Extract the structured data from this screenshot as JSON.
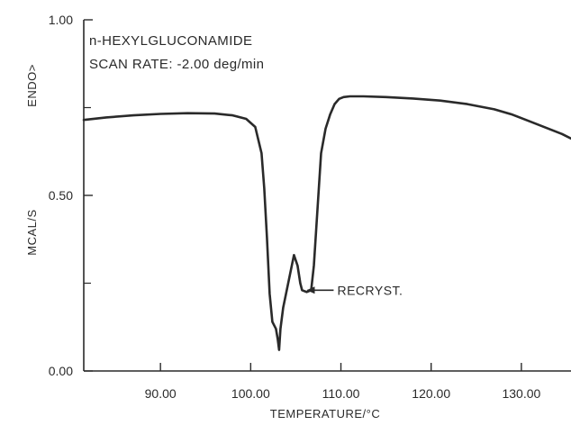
{
  "chart_data": {
    "type": "line",
    "info_lines": [
      "n-HEXYLGLUCONAMIDE",
      "SCAN RATE: -2.00 deg/min"
    ],
    "xlabel": "TEMPERATURE/°C",
    "ylabel_units": "MCAL/S",
    "ylabel_direction": "ENDO>",
    "xlim": [
      81.5,
      135.5
    ],
    "ylim": [
      0.0,
      1.0
    ],
    "x_ticks": [
      {
        "value": 90,
        "label": "90.00"
      },
      {
        "value": 100,
        "label": "100.00"
      },
      {
        "value": 110,
        "label": "110.00"
      },
      {
        "value": 120,
        "label": "120.00"
      },
      {
        "value": 130,
        "label": "130.00"
      }
    ],
    "y_ticks": [
      {
        "value": 0.0,
        "label": "0.00"
      },
      {
        "value": 0.5,
        "label": "0.50"
      },
      {
        "value": 1.0,
        "label": "1.00"
      }
    ],
    "y_minor_ticks": [
      0.25,
      0.75
    ],
    "grid": false,
    "annotation": {
      "text": "RECRYST.",
      "x": 106.0,
      "y": 0.23
    },
    "series": [
      {
        "x": [
          81.5,
          84,
          87,
          90,
          93,
          96,
          98,
          99.5,
          100.5,
          101.2,
          101.5,
          101.8,
          102.1,
          102.4,
          102.6,
          102.8,
          103.0,
          103.15,
          103.3,
          103.6,
          104.0,
          104.4,
          104.8,
          105.2,
          105.5,
          105.7,
          106.2,
          106.7,
          107.0,
          107.4,
          107.8,
          108.3,
          108.8,
          109.3,
          109.8,
          110.3,
          111,
          112.5,
          115,
          118,
          121,
          124,
          127,
          129,
          131,
          133,
          134.5,
          135.5
        ],
        "y": [
          0.715,
          0.722,
          0.728,
          0.732,
          0.734,
          0.733,
          0.728,
          0.718,
          0.695,
          0.62,
          0.52,
          0.38,
          0.22,
          0.14,
          0.13,
          0.12,
          0.09,
          0.06,
          0.12,
          0.18,
          0.23,
          0.28,
          0.33,
          0.3,
          0.25,
          0.23,
          0.225,
          0.23,
          0.3,
          0.46,
          0.62,
          0.69,
          0.73,
          0.76,
          0.775,
          0.78,
          0.782,
          0.782,
          0.78,
          0.776,
          0.77,
          0.76,
          0.745,
          0.73,
          0.71,
          0.69,
          0.675,
          0.662
        ]
      }
    ]
  }
}
